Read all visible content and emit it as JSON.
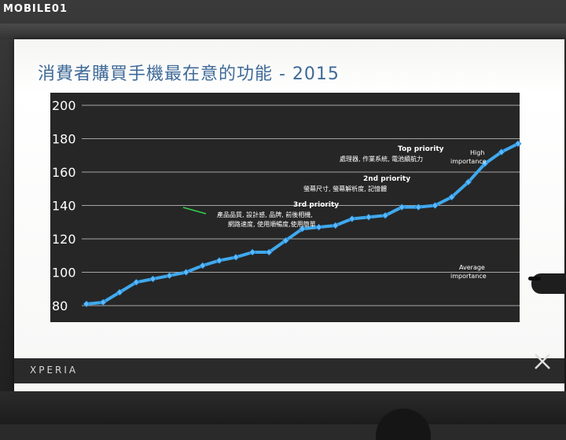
{
  "watermark": "MOBILE01",
  "slide": {
    "title": "消費者購買手機最在意的功能 - 2015",
    "brand": "XPERIA"
  },
  "chart_data": {
    "type": "line",
    "title": "消費者購買手機最在意的功能 - 2015",
    "xlabel": "",
    "ylabel": "",
    "ylim": [
      80,
      200
    ],
    "yticks": [
      80,
      100,
      120,
      140,
      160,
      180,
      200
    ],
    "grid": true,
    "series": [
      {
        "values": [
          81,
          82,
          88,
          94,
          96,
          98,
          100,
          104,
          107,
          109,
          112,
          112,
          119,
          126,
          127,
          128,
          132,
          133,
          134,
          139,
          139,
          140,
          145,
          154,
          165,
          172,
          177
        ]
      }
    ],
    "colors": {
      "line": "#3fa9ee",
      "marker": "#58b9ff",
      "background": "#262626",
      "grid": "#d0d0d0"
    },
    "annotations": {
      "third": {
        "heading": "3rd priority",
        "line1": "產品品質, 設計感, 品牌, 前後相機,",
        "line2": "網路速度, 使用順暢度,使用簡單"
      },
      "second": {
        "heading": "2nd priority",
        "line1": "螢幕尺寸, 螢幕解析度, 記憶體"
      },
      "top": {
        "heading": "Top priority",
        "line1": "處理器, 作業系統, 電池續航力"
      },
      "high": {
        "line1": "High",
        "line2": "importance"
      },
      "average": {
        "line1": "Average",
        "line2": "importance"
      }
    }
  }
}
